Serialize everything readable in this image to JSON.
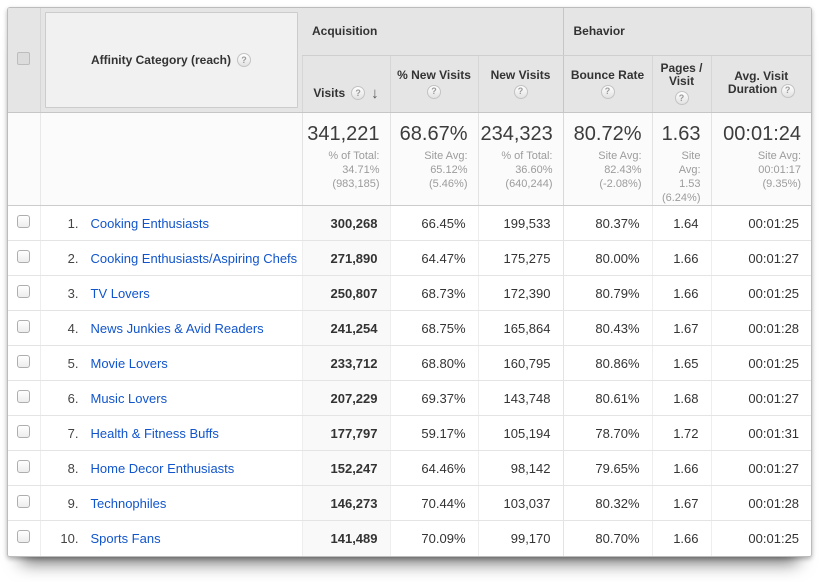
{
  "table": {
    "category_header": {
      "label": "Affinity Category (reach)",
      "help_icon": "?"
    },
    "groups": {
      "acquisition": "Acquisition",
      "behavior": "Behavior"
    },
    "columns": [
      {
        "label": "Visits",
        "help_icon": "?",
        "sort": "descending",
        "sort_arrow": "↓"
      },
      {
        "label": "% New Visits",
        "help_icon": "?"
      },
      {
        "label": "New Visits",
        "help_icon": "?"
      },
      {
        "label": "Bounce Rate",
        "help_icon": "?"
      },
      {
        "label": "Pages / Visit",
        "help_icon": "?"
      },
      {
        "label": "Avg. Visit Duration",
        "help_icon": "?"
      }
    ],
    "summary": [
      {
        "value": "341,221",
        "sub_lines": [
          "% of Total:",
          "34.71%",
          "(983,185)"
        ]
      },
      {
        "value": "68.67%",
        "sub_lines": [
          "Site Avg:",
          "65.12%",
          "(5.46%)"
        ]
      },
      {
        "value": "234,323",
        "sub_lines": [
          "% of Total:",
          "36.60%",
          "(640,244)"
        ]
      },
      {
        "value": "80.72%",
        "sub_lines": [
          "Site Avg:",
          "82.43%",
          "(-2.08%)"
        ]
      },
      {
        "value": "1.63",
        "sub_lines": [
          "Site",
          "Avg:",
          "1.53",
          "(6.24%)"
        ]
      },
      {
        "value": "00:01:24",
        "sub_lines": [
          "Site Avg:",
          "00:01:17",
          "(9.35%)"
        ]
      }
    ],
    "rows": [
      {
        "index": "1.",
        "name": "Cooking Enthusiasts",
        "values": [
          "300,268",
          "66.45%",
          "199,533",
          "80.37%",
          "1.64",
          "00:01:25"
        ]
      },
      {
        "index": "2.",
        "name": "Cooking Enthusiasts/Aspiring Chefs",
        "values": [
          "271,890",
          "64.47%",
          "175,275",
          "80.00%",
          "1.66",
          "00:01:27"
        ]
      },
      {
        "index": "3.",
        "name": "TV Lovers",
        "values": [
          "250,807",
          "68.73%",
          "172,390",
          "80.79%",
          "1.66",
          "00:01:25"
        ]
      },
      {
        "index": "4.",
        "name": "News Junkies & Avid Readers",
        "values": [
          "241,254",
          "68.75%",
          "165,864",
          "80.43%",
          "1.67",
          "00:01:28"
        ]
      },
      {
        "index": "5.",
        "name": "Movie Lovers",
        "values": [
          "233,712",
          "68.80%",
          "160,795",
          "80.86%",
          "1.65",
          "00:01:25"
        ]
      },
      {
        "index": "6.",
        "name": "Music Lovers",
        "values": [
          "207,229",
          "69.37%",
          "143,748",
          "80.61%",
          "1.68",
          "00:01:27"
        ]
      },
      {
        "index": "7.",
        "name": "Health & Fitness Buffs",
        "values": [
          "177,797",
          "59.17%",
          "105,194",
          "78.70%",
          "1.72",
          "00:01:31"
        ]
      },
      {
        "index": "8.",
        "name": "Home Decor Enthusiasts",
        "values": [
          "152,247",
          "64.46%",
          "98,142",
          "79.65%",
          "1.66",
          "00:01:27"
        ]
      },
      {
        "index": "9.",
        "name": "Technophiles",
        "values": [
          "146,273",
          "70.44%",
          "103,037",
          "80.32%",
          "1.67",
          "00:01:28"
        ]
      },
      {
        "index": "10.",
        "name": "Sports Fans",
        "values": [
          "141,489",
          "70.09%",
          "99,170",
          "80.70%",
          "1.66",
          "00:01:25"
        ]
      }
    ],
    "colors": {
      "header_bg": "#e5e5e5",
      "link_blue": "#1155cc",
      "sorted_column_bg": "#f9f9f9",
      "summary_sub_gray": "#9c9c9c"
    }
  }
}
